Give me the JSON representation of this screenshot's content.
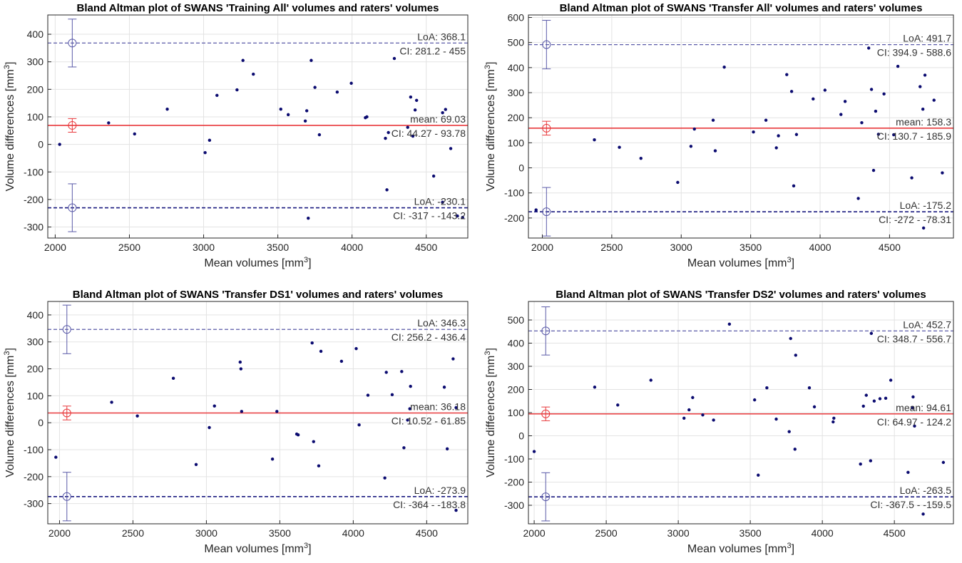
{
  "figure": {
    "layout": "2x2 grid of Bland-Altman plots"
  },
  "chart_data": [
    {
      "type": "scatter",
      "title": "Bland Altman plot of SWANS 'Training All' volumes and raters' volumes",
      "xlabel": "Mean volumes [mm",
      "xlabel_sup": "3",
      "ylabel": "Volume differences [mm",
      "ylabel_sup": "3",
      "xlim": [
        1950,
        4780
      ],
      "ylim": [
        -340,
        470
      ],
      "xticks": [
        2000,
        2500,
        3000,
        3500,
        4000,
        4500
      ],
      "yticks": [
        -300,
        -200,
        -100,
        0,
        100,
        200,
        300,
        400
      ],
      "grid": true,
      "lines": {
        "mean": {
          "value": 69.03,
          "label": "mean: 69.03",
          "ci_label": "CI: 44.27 - 93.78",
          "ci": [
            44.27,
            93.78
          ],
          "color": "#e8383b",
          "style": "solid"
        },
        "upper_loa": {
          "value": 368.1,
          "label": "LoA: 368.1",
          "ci_label": "CI: 281.2 - 455",
          "ci": [
            281.2,
            455
          ],
          "color": "#5a5aa8",
          "style": "dashed"
        },
        "lower_loa": {
          "value": -230.1,
          "label": "LoA: -230.1",
          "ci_label": "CI: -317 - -143.2",
          "ci": [
            -317,
            -143.2
          ],
          "color": "#1a1a80",
          "style": "dashed"
        }
      },
      "marker_x": 2115,
      "points": [
        [
          2030,
          0
        ],
        [
          2360,
          78
        ],
        [
          2535,
          38
        ],
        [
          2755,
          128
        ],
        [
          3010,
          -30
        ],
        [
          3040,
          15
        ],
        [
          3090,
          178
        ],
        [
          3225,
          198
        ],
        [
          3265,
          305
        ],
        [
          3335,
          255
        ],
        [
          3520,
          128
        ],
        [
          3570,
          108
        ],
        [
          3685,
          85
        ],
        [
          3695,
          122
        ],
        [
          3705,
          -268
        ],
        [
          3725,
          305
        ],
        [
          3750,
          207
        ],
        [
          3780,
          35
        ],
        [
          3900,
          190
        ],
        [
          3995,
          222
        ],
        [
          4090,
          97
        ],
        [
          4100,
          100
        ],
        [
          4225,
          22
        ],
        [
          4235,
          -165
        ],
        [
          4245,
          43
        ],
        [
          4285,
          312
        ],
        [
          4375,
          62
        ],
        [
          4395,
          172
        ],
        [
          4410,
          30
        ],
        [
          4425,
          125
        ],
        [
          4435,
          160
        ],
        [
          4550,
          -115
        ],
        [
          4610,
          -210
        ],
        [
          4610,
          115
        ],
        [
          4630,
          127
        ],
        [
          4665,
          -15
        ],
        [
          4710,
          -260
        ],
        [
          4745,
          -265
        ]
      ]
    },
    {
      "type": "scatter",
      "title": "Bland Altman plot of SWANS 'Transfer All' volumes and raters' volumes",
      "xlabel": "Mean volumes [mm",
      "xlabel_sup": "3",
      "ylabel": "Volume differences [mm",
      "ylabel_sup": "3",
      "xlim": [
        1900,
        4960
      ],
      "ylim": [
        -280,
        610
      ],
      "xticks": [
        2000,
        2500,
        3000,
        3500,
        4000,
        4500
      ],
      "yticks": [
        -200,
        -100,
        0,
        100,
        200,
        300,
        400,
        500,
        600
      ],
      "grid": true,
      "lines": {
        "mean": {
          "value": 158.3,
          "label": "mean: 158.3",
          "ci_label": "CI: 130.7 - 185.9",
          "ci": [
            130.7,
            185.9
          ],
          "color": "#e8383b",
          "style": "solid"
        },
        "upper_loa": {
          "value": 491.7,
          "label": "LoA: 491.7",
          "ci_label": "CI: 394.9 - 588.6",
          "ci": [
            394.9,
            588.6
          ],
          "color": "#5a5aa8",
          "style": "dashed"
        },
        "lower_loa": {
          "value": -175.2,
          "label": "LoA: -175.2",
          "ci_label": "CI: -272 - -78.31",
          "ci": [
            -272,
            -78.31
          ],
          "color": "#1a1a80",
          "style": "dashed"
        }
      },
      "marker_x": 2030,
      "points": [
        [
          1955,
          -168
        ],
        [
          2375,
          112
        ],
        [
          2555,
          82
        ],
        [
          2710,
          38
        ],
        [
          2975,
          -58
        ],
        [
          3070,
          86
        ],
        [
          3095,
          155
        ],
        [
          3230,
          190
        ],
        [
          3245,
          68
        ],
        [
          3310,
          402
        ],
        [
          3520,
          143
        ],
        [
          3610,
          190
        ],
        [
          3685,
          80
        ],
        [
          3700,
          128
        ],
        [
          3760,
          372
        ],
        [
          3795,
          305
        ],
        [
          3810,
          -72
        ],
        [
          3830,
          133
        ],
        [
          3950,
          275
        ],
        [
          4035,
          310
        ],
        [
          4150,
          213
        ],
        [
          4180,
          265
        ],
        [
          4275,
          -122
        ],
        [
          4300,
          180
        ],
        [
          4350,
          478
        ],
        [
          4370,
          313
        ],
        [
          4385,
          -10
        ],
        [
          4400,
          226
        ],
        [
          4420,
          134
        ],
        [
          4460,
          295
        ],
        [
          4530,
          132
        ],
        [
          4560,
          405
        ],
        [
          4660,
          -40
        ],
        [
          4720,
          324
        ],
        [
          4740,
          234
        ],
        [
          4755,
          370
        ],
        [
          4745,
          -240
        ],
        [
          4820,
          270
        ],
        [
          4880,
          -20
        ]
      ]
    },
    {
      "type": "scatter",
      "title": "Bland Altman plot of SWANS 'Transfer DS1' volumes and raters' volumes",
      "xlabel": "Mean volumes [mm",
      "xlabel_sup": "3",
      "ylabel": "Volume differences [mm",
      "ylabel_sup": "3",
      "xlim": [
        1920,
        4780
      ],
      "ylim": [
        -375,
        450
      ],
      "xticks": [
        2000,
        2500,
        3000,
        3500,
        4000,
        4500
      ],
      "yticks": [
        -300,
        -200,
        -100,
        0,
        100,
        200,
        300,
        400
      ],
      "grid": true,
      "lines": {
        "mean": {
          "value": 36.18,
          "label": "mean: 36.18",
          "ci_label": "CI: 10.52 - 61.85",
          "ci": [
            10.52,
            61.85
          ],
          "color": "#e8383b",
          "style": "solid"
        },
        "upper_loa": {
          "value": 346.3,
          "label": "LoA: 346.3",
          "ci_label": "CI: 256.2 - 436.4",
          "ci": [
            256.2,
            436.4
          ],
          "color": "#5a5aa8",
          "style": "dashed"
        },
        "lower_loa": {
          "value": -273.9,
          "label": "LoA: -273.9",
          "ci_label": "CI: -364 - -183.8",
          "ci": [
            -364,
            -183.8
          ],
          "color": "#1a1a80",
          "style": "dashed"
        }
      },
      "marker_x": 2050,
      "points": [
        [
          1975,
          -128
        ],
        [
          2355,
          76
        ],
        [
          2530,
          25
        ],
        [
          2775,
          165
        ],
        [
          2930,
          -155
        ],
        [
          3020,
          -18
        ],
        [
          3055,
          62
        ],
        [
          3230,
          225
        ],
        [
          3235,
          200
        ],
        [
          3240,
          42
        ],
        [
          3450,
          -135
        ],
        [
          3480,
          42
        ],
        [
          3615,
          -42
        ],
        [
          3625,
          -45
        ],
        [
          3720,
          296
        ],
        [
          3730,
          -70
        ],
        [
          3765,
          -160
        ],
        [
          3780,
          265
        ],
        [
          3920,
          228
        ],
        [
          4020,
          275
        ],
        [
          4040,
          -8
        ],
        [
          4100,
          102
        ],
        [
          4215,
          -205
        ],
        [
          4225,
          187
        ],
        [
          4265,
          104
        ],
        [
          4330,
          190
        ],
        [
          4345,
          -93
        ],
        [
          4370,
          10
        ],
        [
          4385,
          52
        ],
        [
          4390,
          135
        ],
        [
          4620,
          132
        ],
        [
          4640,
          -97
        ],
        [
          4680,
          237
        ],
        [
          4700,
          -325
        ],
        [
          4700,
          56
        ]
      ]
    },
    {
      "type": "scatter",
      "title": "Bland Altman plot of SWANS 'Transfer DS2' volumes and raters' volumes",
      "xlabel": "Mean volumes [mm",
      "xlabel_sup": "3",
      "ylabel": "Volume differences [mm",
      "ylabel_sup": "3",
      "xlim": [
        1960,
        4910
      ],
      "ylim": [
        -380,
        580
      ],
      "xticks": [
        2000,
        2500,
        3000,
        3500,
        4000,
        4500
      ],
      "yticks": [
        -300,
        -200,
        -100,
        0,
        100,
        200,
        300,
        400,
        500
      ],
      "grid": true,
      "lines": {
        "mean": {
          "value": 94.61,
          "label": "mean: 94.61",
          "ci_label": "CI: 64.97 - 124.2",
          "ci": [
            64.97,
            124.2
          ],
          "color": "#e8383b",
          "style": "solid"
        },
        "upper_loa": {
          "value": 452.7,
          "label": "LoA: 452.7",
          "ci_label": "CI: 348.7 - 556.7",
          "ci": [
            348.7,
            556.7
          ],
          "color": "#5a5aa8",
          "style": "dashed"
        },
        "lower_loa": {
          "value": -263.5,
          "label": "LoA: -263.5",
          "ci_label": "CI: -367.5 - -159.5",
          "ci": [
            -367.5,
            -159.5
          ],
          "color": "#1a1a80",
          "style": "dashed"
        }
      },
      "marker_x": 2080,
      "points": [
        [
          2000,
          -68
        ],
        [
          2420,
          210
        ],
        [
          2580,
          133
        ],
        [
          2810,
          240
        ],
        [
          3040,
          76
        ],
        [
          3075,
          112
        ],
        [
          3100,
          165
        ],
        [
          3170,
          90
        ],
        [
          3245,
          68
        ],
        [
          3355,
          482
        ],
        [
          3530,
          155
        ],
        [
          3555,
          -170
        ],
        [
          3615,
          207
        ],
        [
          3680,
          72
        ],
        [
          3770,
          18
        ],
        [
          3780,
          420
        ],
        [
          3810,
          -58
        ],
        [
          3815,
          348
        ],
        [
          3910,
          207
        ],
        [
          3945,
          125
        ],
        [
          4075,
          60
        ],
        [
          4080,
          76
        ],
        [
          4265,
          -122
        ],
        [
          4285,
          128
        ],
        [
          4305,
          175
        ],
        [
          4335,
          -108
        ],
        [
          4340,
          442
        ],
        [
          4360,
          150
        ],
        [
          4400,
          160
        ],
        [
          4440,
          162
        ],
        [
          4475,
          240
        ],
        [
          4595,
          -158
        ],
        [
          4625,
          120
        ],
        [
          4630,
          168
        ],
        [
          4640,
          42
        ],
        [
          4700,
          -338
        ],
        [
          4840,
          -115
        ]
      ]
    }
  ]
}
